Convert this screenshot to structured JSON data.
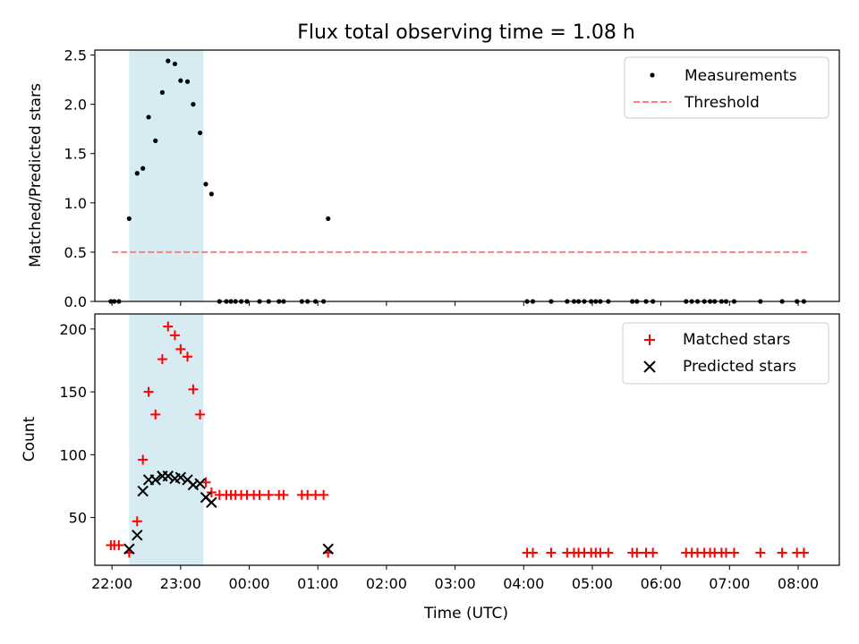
{
  "chart_data": [
    {
      "type": "scatter",
      "title": "Flux total observing time = 1.08 h",
      "xlabel": "",
      "ylabel": "Matched/Predicted stars",
      "x_unit": "hours since 22:00 UTC",
      "xlim": [
        -0.25,
        10.6
      ],
      "ylim": [
        0,
        2.55
      ],
      "yticks": [
        "0.0",
        "0.5",
        "1.0",
        "1.5",
        "2.0",
        "2.5"
      ],
      "highlight_span": {
        "from": "22:15",
        "to": "23:20",
        "color": "#add8e6"
      },
      "series": [
        {
          "name": "Measurements",
          "marker": "dot",
          "color": "#000000",
          "points": [
            [
              "21:59",
              0
            ],
            [
              "22:02",
              0
            ],
            [
              "22:06",
              0
            ],
            [
              "22:15",
              0.84
            ],
            [
              "22:22",
              1.3
            ],
            [
              "22:27",
              1.35
            ],
            [
              "22:32",
              1.87
            ],
            [
              "22:38",
              1.63
            ],
            [
              "22:44",
              2.12
            ],
            [
              "22:49",
              2.44
            ],
            [
              "22:55",
              2.41
            ],
            [
              "23:00",
              2.24
            ],
            [
              "23:06",
              2.23
            ],
            [
              "23:11",
              2.0
            ],
            [
              "23:17",
              1.71
            ],
            [
              "23:22",
              1.19
            ],
            [
              "23:27",
              1.09
            ],
            [
              "23:34",
              0
            ],
            [
              "23:40",
              0
            ],
            [
              "23:44",
              0
            ],
            [
              "23:48",
              0
            ],
            [
              "23:53",
              0
            ],
            [
              "23:58",
              0
            ],
            [
              "00:09",
              0
            ],
            [
              "00:17",
              0
            ],
            [
              "00:26",
              0
            ],
            [
              "00:30",
              0
            ],
            [
              "00:46",
              0
            ],
            [
              "00:51",
              0
            ],
            [
              "00:58",
              0
            ],
            [
              "01:05",
              0
            ],
            [
              "01:09",
              0.84
            ],
            [
              "04:03",
              0
            ],
            [
              "04:08",
              0
            ],
            [
              "04:24",
              0
            ],
            [
              "04:38",
              0
            ],
            [
              "04:44",
              0
            ],
            [
              "04:48",
              0
            ],
            [
              "04:53",
              0
            ],
            [
              "04:59",
              0
            ],
            [
              "05:03",
              0
            ],
            [
              "05:07",
              0
            ],
            [
              "05:14",
              0
            ],
            [
              "05:35",
              0
            ],
            [
              "05:39",
              0
            ],
            [
              "05:47",
              0
            ],
            [
              "05:53",
              0
            ],
            [
              "06:22",
              0
            ],
            [
              "06:27",
              0
            ],
            [
              "06:32",
              0
            ],
            [
              "06:38",
              0
            ],
            [
              "06:43",
              0
            ],
            [
              "06:47",
              0
            ],
            [
              "06:53",
              0
            ],
            [
              "06:57",
              0
            ],
            [
              "07:04",
              0
            ],
            [
              "07:27",
              0
            ],
            [
              "07:46",
              0
            ],
            [
              "07:59",
              0
            ],
            [
              "08:05",
              0
            ]
          ]
        },
        {
          "name": "Threshold",
          "style": "dashed",
          "color": "#ff7f7f",
          "x": [
            "22:00",
            "08:08"
          ],
          "y": [
            0.5,
            0.5
          ]
        }
      ],
      "legend": "top-right"
    },
    {
      "type": "scatter",
      "xlabel": "Time (UTC)",
      "ylabel": "Count",
      "x_unit": "hours since 22:00 UTC",
      "xlim": [
        -0.25,
        10.6
      ],
      "ylim": [
        12,
        212
      ],
      "xticks": [
        "22:00",
        "23:00",
        "00:00",
        "01:00",
        "02:00",
        "03:00",
        "04:00",
        "05:00",
        "06:00",
        "07:00",
        "08:00"
      ],
      "yticks": [
        "50",
        "100",
        "150",
        "200"
      ],
      "highlight_span": {
        "from": "22:15",
        "to": "23:20",
        "color": "#add8e6"
      },
      "series": [
        {
          "name": "Matched stars",
          "marker": "plus",
          "color": "#ff0000",
          "points": [
            [
              "21:59",
              28
            ],
            [
              "22:02",
              28
            ],
            [
              "22:06",
              28
            ],
            [
              "22:15",
              22
            ],
            [
              "22:22",
              47
            ],
            [
              "22:27",
              96
            ],
            [
              "22:32",
              150
            ],
            [
              "22:38",
              132
            ],
            [
              "22:44",
              176
            ],
            [
              "22:49",
              202
            ],
            [
              "22:55",
              195
            ],
            [
              "23:00",
              184
            ],
            [
              "23:06",
              178
            ],
            [
              "23:11",
              152
            ],
            [
              "23:17",
              132
            ],
            [
              "23:22",
              78
            ],
            [
              "23:27",
              70
            ],
            [
              "23:34",
              68
            ],
            [
              "23:40",
              68
            ],
            [
              "23:44",
              68
            ],
            [
              "23:48",
              68
            ],
            [
              "23:53",
              68
            ],
            [
              "23:58",
              68
            ],
            [
              "00:04",
              68
            ],
            [
              "00:09",
              68
            ],
            [
              "00:17",
              68
            ],
            [
              "00:26",
              68
            ],
            [
              "00:30",
              68
            ],
            [
              "00:46",
              68
            ],
            [
              "00:51",
              68
            ],
            [
              "00:58",
              68
            ],
            [
              "01:05",
              68
            ],
            [
              "01:09",
              22
            ],
            [
              "04:03",
              22
            ],
            [
              "04:08",
              22
            ],
            [
              "04:24",
              22
            ],
            [
              "04:38",
              22
            ],
            [
              "04:44",
              22
            ],
            [
              "04:48",
              22
            ],
            [
              "04:53",
              22
            ],
            [
              "04:59",
              22
            ],
            [
              "05:03",
              22
            ],
            [
              "05:07",
              22
            ],
            [
              "05:14",
              22
            ],
            [
              "05:35",
              22
            ],
            [
              "05:39",
              22
            ],
            [
              "05:47",
              22
            ],
            [
              "05:53",
              22
            ],
            [
              "06:22",
              22
            ],
            [
              "06:27",
              22
            ],
            [
              "06:32",
              22
            ],
            [
              "06:38",
              22
            ],
            [
              "06:43",
              22
            ],
            [
              "06:47",
              22
            ],
            [
              "06:53",
              22
            ],
            [
              "06:57",
              22
            ],
            [
              "07:04",
              22
            ],
            [
              "07:27",
              22
            ],
            [
              "07:46",
              22
            ],
            [
              "07:59",
              22
            ],
            [
              "08:05",
              22
            ]
          ]
        },
        {
          "name": "Predicted stars",
          "marker": "x",
          "color": "#000000",
          "points": [
            [
              "22:15",
              25
            ],
            [
              "22:22",
              36
            ],
            [
              "22:27",
              71
            ],
            [
              "22:32",
              80
            ],
            [
              "22:38",
              80
            ],
            [
              "22:44",
              83
            ],
            [
              "22:49",
              83
            ],
            [
              "22:55",
              81
            ],
            [
              "23:00",
              82
            ],
            [
              "23:06",
              80
            ],
            [
              "23:11",
              76
            ],
            [
              "23:17",
              77
            ],
            [
              "23:22",
              66
            ],
            [
              "23:27",
              62
            ],
            [
              "01:09",
              25
            ]
          ]
        }
      ],
      "legend": "top-right"
    }
  ]
}
